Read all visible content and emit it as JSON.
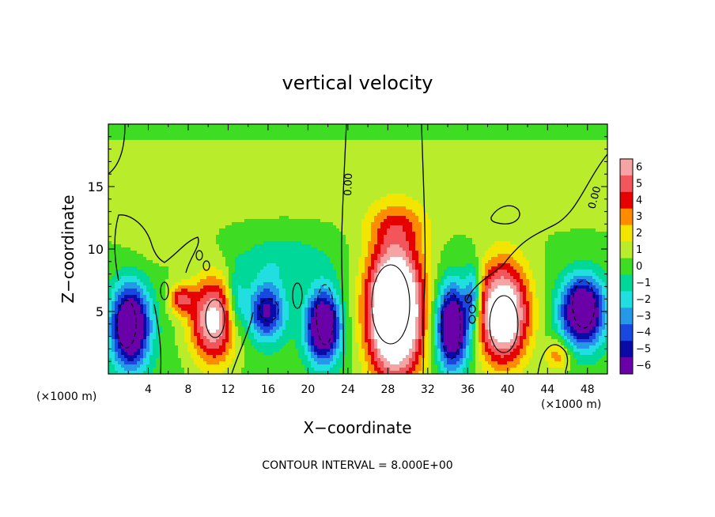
{
  "chart_data": {
    "type": "heatmap",
    "title": "vertical velocity",
    "xlabel": "X−coordinate",
    "ylabel": "Z−coordinate",
    "x_unit": "(×1000 m)",
    "xlim": [
      0,
      50
    ],
    "ylim": [
      0,
      20
    ],
    "x_ticks": [
      "4",
      "8",
      "12",
      "16",
      "20",
      "24",
      "28",
      "32",
      "36",
      "40",
      "44",
      "48"
    ],
    "y_ticks": [
      "5",
      "10",
      "15"
    ],
    "colorbar": {
      "labels": [
        "6",
        "5",
        "4",
        "3",
        "2",
        "1",
        "0",
        "−1",
        "−2",
        "−3",
        "−4",
        "−5",
        "−6"
      ],
      "colors": [
        "#f6a3a3",
        "#f2555a",
        "#e60000",
        "#ff8c00",
        "#f2e600",
        "#b9ec2a",
        "#3fdc24",
        "#00d89a",
        "#21dfe0",
        "#2698e8",
        "#1848e0",
        "#0a0aa6",
        "#6a00a8"
      ]
    },
    "contour_labels": [
      "0.00",
      "0.00"
    ],
    "footer": "CONTOUR INTERVAL = 8.000E+00",
    "blobs": [
      {
        "x": 2.2,
        "z": 3.8,
        "rx": 1.9,
        "rz": 3.3,
        "w": -9
      },
      {
        "x": 10.5,
        "z": 4.3,
        "rx": 2.3,
        "rz": 3.4,
        "w": 7
      },
      {
        "x": 7.3,
        "z": 6.0,
        "rx": 1.2,
        "rz": 1.2,
        "w": 4
      },
      {
        "x": 15.8,
        "z": 5.0,
        "rx": 1.9,
        "rz": 2.3,
        "w": -6
      },
      {
        "x": 21.5,
        "z": 3.8,
        "rx": 1.7,
        "rz": 2.8,
        "w": -9
      },
      {
        "x": 28.7,
        "z": 5.0,
        "rx": 2.8,
        "rz": 5.3,
        "w": 12
      },
      {
        "x": 34.5,
        "z": 3.8,
        "rx": 1.7,
        "rz": 3.3,
        "w": -9
      },
      {
        "x": 39.5,
        "z": 4.8,
        "rx": 2.6,
        "rz": 4.0,
        "w": 9
      },
      {
        "x": 47.5,
        "z": 5.0,
        "rx": 2.2,
        "rz": 2.7,
        "w": -9
      },
      {
        "x": 45.0,
        "z": 1.5,
        "rx": 1.3,
        "rz": 1.3,
        "w": 3
      },
      {
        "x": 29.0,
        "z": 12.0,
        "rx": 3.0,
        "rz": 1.8,
        "w": 1.8
      },
      {
        "x": 17.5,
        "z": 9.2,
        "rx": 5.0,
        "rz": 2.0,
        "w": -1.6
      },
      {
        "x": 4.0,
        "z": 11.0,
        "rx": 3.0,
        "rz": 3.0,
        "w": 0.6
      },
      {
        "x": 36.5,
        "z": 6.3,
        "rx": 0.8,
        "rz": 2.5,
        "w": -4
      },
      {
        "x": 12.8,
        "z": 5.8,
        "rx": 1.0,
        "rz": 2.5,
        "w": -3
      }
    ]
  }
}
